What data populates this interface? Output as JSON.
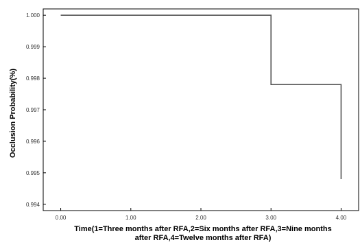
{
  "chart_data": {
    "type": "line",
    "step": true,
    "title": "",
    "xlabel_lines": [
      "Time(1=Three months after RFA,2=Six months after RFA,3=Nine months",
      "after RFA,4=Twelve months after RFA)"
    ],
    "ylabel": "Occlusion Probability(%)",
    "xlim": [
      -0.25,
      4.25
    ],
    "ylim": [
      0.9938,
      1.0002
    ],
    "x_ticks": [
      0,
      1,
      2,
      3,
      4
    ],
    "x_tick_labels": [
      "0.00",
      "1.00",
      "2.00",
      "3.00",
      "4.00"
    ],
    "y_ticks": [
      0.994,
      0.995,
      0.996,
      0.997,
      0.998,
      0.999,
      1.0
    ],
    "y_tick_labels": [
      "0.994",
      "0.995",
      "0.996",
      "0.997",
      "0.998",
      "0.999",
      "1.000"
    ],
    "grid": false,
    "series": [
      {
        "x": [
          0.0,
          3.0,
          3.0,
          4.0,
          4.0
        ],
        "y": [
          1.0,
          1.0,
          0.9978,
          0.9978,
          0.9948
        ]
      }
    ],
    "colors": {
      "line": "#555555",
      "axis": "#000000",
      "background": "#ffffff"
    }
  }
}
